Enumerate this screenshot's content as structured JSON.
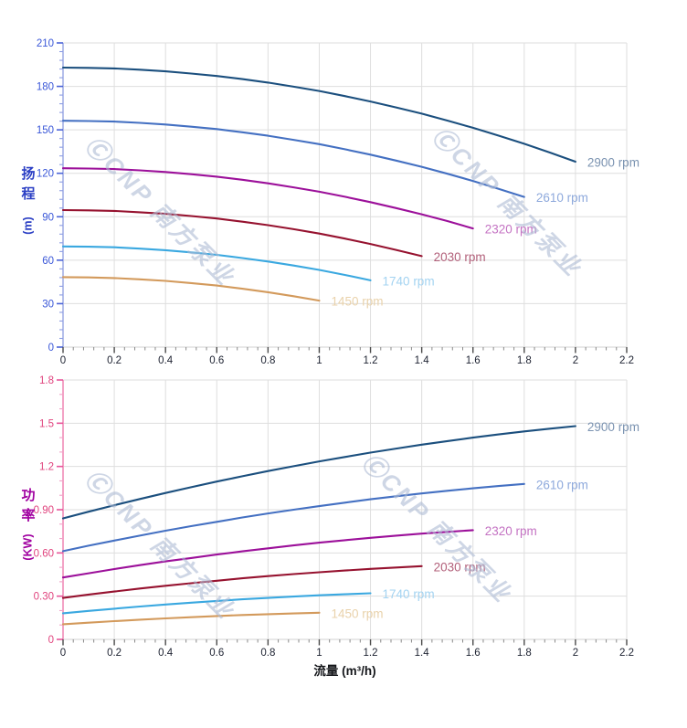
{
  "page": {
    "background": "#ffffff"
  },
  "watermark": {
    "text": "ⒸCNP 南方泵业",
    "color": "#adbad4"
  },
  "x_axis_title": {
    "label": "流量 (m³/h)",
    "color": "#14161a"
  },
  "head_axis": {
    "line1": "扬",
    "line2": "程",
    "unit": "(m)",
    "color": "#2b3fc4"
  },
  "power_axis": {
    "line1": "功",
    "line2": "率",
    "unit": "(KW)",
    "color": "#a000a0"
  },
  "chart_data": [
    {
      "type": "line",
      "name": "head-vs-flow",
      "title": "",
      "xlabel": "流量 (m³/h)",
      "ylabel": "扬程 (m)",
      "xlim": [
        0,
        2.2
      ],
      "ylim": [
        0,
        210
      ],
      "grid": true,
      "legend_position": "curve-end-labels",
      "x_ticks": [
        0,
        0.2,
        0.4,
        0.6,
        0.8,
        1,
        1.2,
        1.4,
        1.6,
        1.8,
        2,
        2.2
      ],
      "x_tick_labels": [
        "0",
        "0.2",
        "0.4",
        "0.6",
        "0.8",
        "1",
        "1.2",
        "1.4",
        "1.6",
        "1.8",
        "2",
        "2.2"
      ],
      "x_minor_step": 0.04,
      "y_ticks": [
        0,
        30,
        60,
        90,
        120,
        150,
        180,
        210
      ],
      "y_tick_labels": [
        "0",
        "30",
        "60",
        "90",
        "120",
        "150",
        "180",
        "210"
      ],
      "y_minor_step": 6,
      "colors": {
        "grid": "#dedede",
        "x_axis_line": "#d0d0d0",
        "y_axis_line": "#a3b0e6",
        "y_tick": "#4a63d8",
        "y_minor_tick": "#8d9de4",
        "y_label": "#3a57d8",
        "x_tick": "#4a4a4a",
        "x_minor_tick": "#8a8a8a",
        "x_label": "#1c2130"
      },
      "series": [
        {
          "name": "2900 rpm",
          "color": "#1b4f7e",
          "label_color": "#7b93b1",
          "x": [
            0,
            0.1,
            0.2,
            0.3,
            0.4,
            0.5,
            0.6,
            0.7,
            0.8,
            0.9,
            1,
            1.1,
            1.2,
            1.3,
            1.4,
            1.5,
            1.6,
            1.7,
            1.8,
            1.9,
            2
          ],
          "y": [
            193,
            192.8,
            192.4,
            191.5,
            190.4,
            188.9,
            187.2,
            185,
            182.6,
            179.8,
            176.8,
            173.3,
            169.6,
            165.5,
            161.2,
            156.4,
            151.4,
            146,
            140.4,
            134.3,
            128
          ]
        },
        {
          "name": "2610 rpm",
          "color": "#4470c2",
          "label_color": "#8ea9dc",
          "x": [
            0,
            0.1,
            0.2,
            0.3,
            0.4,
            0.5,
            0.6,
            0.7,
            0.8,
            0.9,
            1,
            1.1,
            1.2,
            1.3,
            1.4,
            1.5,
            1.6,
            1.7,
            1.8
          ],
          "y": [
            156.3,
            156.1,
            155.7,
            154.8,
            153.7,
            152.2,
            150.5,
            148.3,
            145.9,
            143.1,
            140.1,
            136.6,
            132.9,
            128.8,
            124.5,
            119.7,
            114.7,
            109.3,
            103.7
          ]
        },
        {
          "name": "2320 rpm",
          "color": "#9c109a",
          "label_color": "#c473c3",
          "x": [
            0,
            0.1,
            0.2,
            0.3,
            0.4,
            0.5,
            0.6,
            0.7,
            0.8,
            0.9,
            1,
            1.1,
            1.2,
            1.3,
            1.4,
            1.5,
            1.6
          ],
          "y": [
            123.5,
            123.3,
            122.9,
            122,
            120.9,
            119.4,
            117.7,
            115.5,
            113.1,
            110.3,
            107.3,
            103.8,
            100.1,
            96,
            91.7,
            87,
            81.9
          ]
        },
        {
          "name": "2030 rpm",
          "color": "#96122f",
          "label_color": "#b2607a",
          "x": [
            0,
            0.1,
            0.2,
            0.3,
            0.4,
            0.5,
            0.6,
            0.7,
            0.8,
            0.9,
            1,
            1.1,
            1.2,
            1.3,
            1.4
          ],
          "y": [
            94.6,
            94.4,
            94,
            93.1,
            92,
            90.5,
            88.8,
            86.6,
            84.2,
            81.4,
            78.4,
            74.9,
            71.2,
            67.1,
            62.8
          ]
        },
        {
          "name": "1740 rpm",
          "color": "#3aa8e0",
          "label_color": "#a3d3f1",
          "x": [
            0,
            0.1,
            0.2,
            0.3,
            0.4,
            0.5,
            0.6,
            0.7,
            0.8,
            0.9,
            1,
            1.1,
            1.2
          ],
          "y": [
            69.5,
            69.3,
            68.9,
            68,
            66.9,
            65.4,
            63.7,
            61.5,
            59.1,
            56.3,
            53.3,
            49.8,
            46.1
          ]
        },
        {
          "name": "1450 rpm",
          "color": "#d39a5c",
          "label_color": "#e9d2ab",
          "x": [
            0,
            0.1,
            0.2,
            0.3,
            0.4,
            0.5,
            0.6,
            0.7,
            0.8,
            0.9,
            1
          ],
          "y": [
            48.3,
            48.1,
            47.7,
            46.8,
            45.7,
            44.2,
            42.5,
            40.3,
            37.9,
            35.1,
            32.1
          ]
        }
      ]
    },
    {
      "type": "line",
      "name": "power-vs-flow",
      "title": "",
      "xlabel": "流量 (m³/h)",
      "ylabel": "功率 (KW)",
      "xlim": [
        0,
        2.2
      ],
      "ylim": [
        0,
        1.8
      ],
      "grid": true,
      "legend_position": "curve-end-labels",
      "x_ticks": [
        0,
        0.2,
        0.4,
        0.6,
        0.8,
        1,
        1.2,
        1.4,
        1.6,
        1.8,
        2,
        2.2
      ],
      "x_tick_labels": [
        "0",
        "0.2",
        "0.4",
        "0.6",
        "0.8",
        "1",
        "1.2",
        "1.4",
        "1.6",
        "1.8",
        "2",
        "2.2"
      ],
      "x_minor_step": 0.04,
      "y_ticks": [
        0,
        0.3,
        0.6,
        0.9,
        1.2,
        1.5,
        1.8
      ],
      "y_tick_labels": [
        "0",
        "0.30",
        "0.60",
        "0.90",
        "1.2",
        "1.5",
        "1.8"
      ],
      "y_minor_step": 0.1,
      "colors": {
        "grid": "#dedede",
        "x_axis_line": "#d0d0d0",
        "y_axis_line": "#f08cb8",
        "y_tick": "#e8559a",
        "y_minor_tick": "#f2a2c8",
        "y_label": "#e0447e",
        "x_tick": "#4a4a4a",
        "x_minor_tick": "#8a8a8a",
        "x_label": "#1c2130"
      },
      "series": [
        {
          "name": "2900 rpm",
          "color": "#1b4f7e",
          "label_color": "#7b93b1",
          "x": [
            0,
            0.1,
            0.2,
            0.3,
            0.4,
            0.5,
            0.6,
            0.7,
            0.8,
            0.9,
            1,
            1.1,
            1.2,
            1.3,
            1.4,
            1.5,
            1.6,
            1.7,
            1.8,
            1.9,
            2
          ],
          "y": [
            0.84,
            0.886,
            0.931,
            0.974,
            1.016,
            1.056,
            1.095,
            1.132,
            1.168,
            1.202,
            1.235,
            1.266,
            1.296,
            1.324,
            1.351,
            1.376,
            1.4,
            1.422,
            1.443,
            1.462,
            1.48
          ]
        },
        {
          "name": "2610 rpm",
          "color": "#4470c2",
          "label_color": "#8ea9dc",
          "x": [
            0,
            0.1,
            0.2,
            0.3,
            0.4,
            0.5,
            0.6,
            0.7,
            0.8,
            0.9,
            1,
            1.1,
            1.2,
            1.3,
            1.4,
            1.5,
            1.6,
            1.7,
            1.8
          ],
          "y": [
            0.612,
            0.65,
            0.686,
            0.72,
            0.754,
            0.786,
            0.816,
            0.846,
            0.874,
            0.9,
            0.925,
            0.949,
            0.972,
            0.993,
            1.013,
            1.031,
            1.048,
            1.064,
            1.079
          ]
        },
        {
          "name": "2320 rpm",
          "color": "#9c109a",
          "label_color": "#c473c3",
          "x": [
            0,
            0.1,
            0.2,
            0.3,
            0.4,
            0.5,
            0.6,
            0.7,
            0.8,
            0.9,
            1,
            1.1,
            1.2,
            1.3,
            1.4,
            1.5,
            1.6
          ],
          "y": [
            0.43,
            0.459,
            0.488,
            0.515,
            0.541,
            0.565,
            0.589,
            0.611,
            0.632,
            0.652,
            0.671,
            0.688,
            0.705,
            0.72,
            0.734,
            0.746,
            0.758
          ]
        },
        {
          "name": "2030 rpm",
          "color": "#96122f",
          "label_color": "#b2607a",
          "x": [
            0,
            0.1,
            0.2,
            0.3,
            0.4,
            0.5,
            0.6,
            0.7,
            0.8,
            0.9,
            1,
            1.1,
            1.2,
            1.3,
            1.4
          ],
          "y": [
            0.288,
            0.311,
            0.332,
            0.353,
            0.372,
            0.39,
            0.407,
            0.424,
            0.439,
            0.453,
            0.466,
            0.478,
            0.489,
            0.499,
            0.508
          ]
        },
        {
          "name": "1740 rpm",
          "color": "#3aa8e0",
          "label_color": "#a3d3f1",
          "x": [
            0,
            0.1,
            0.2,
            0.3,
            0.4,
            0.5,
            0.6,
            0.7,
            0.8,
            0.9,
            1,
            1.1,
            1.2
          ],
          "y": [
            0.181,
            0.198,
            0.213,
            0.228,
            0.242,
            0.255,
            0.267,
            0.278,
            0.288,
            0.297,
            0.306,
            0.313,
            0.32
          ]
        },
        {
          "name": "1450 rpm",
          "color": "#d39a5c",
          "label_color": "#e9d2ab",
          "x": [
            0,
            0.1,
            0.2,
            0.3,
            0.4,
            0.5,
            0.6,
            0.7,
            0.8,
            0.9,
            1
          ],
          "y": [
            0.105,
            0.116,
            0.127,
            0.137,
            0.146,
            0.154,
            0.162,
            0.169,
            0.175,
            0.18,
            0.185
          ]
        }
      ]
    }
  ]
}
